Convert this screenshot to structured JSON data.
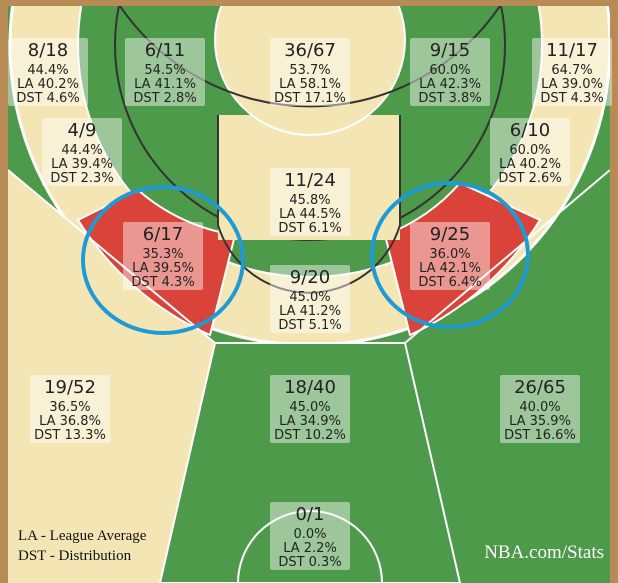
{
  "zones": [
    {
      "shots": "8/18",
      "pct": "44.4%",
      "la": "LA 40.2%",
      "dst": "DST 4.6%"
    },
    {
      "shots": "6/11",
      "pct": "54.5%",
      "la": "LA 41.1%",
      "dst": "DST 2.8%"
    },
    {
      "shots": "36/67",
      "pct": "53.7%",
      "la": "LA 58.1%",
      "dst": "DST 17.1%"
    },
    {
      "shots": "9/15",
      "pct": "60.0%",
      "la": "LA 42.3%",
      "dst": "DST 3.8%"
    },
    {
      "shots": "11/17",
      "pct": "64.7%",
      "la": "LA 39.0%",
      "dst": "DST 4.3%"
    },
    {
      "shots": "4/9",
      "pct": "44.4%",
      "la": "LA 39.4%",
      "dst": "DST 2.3%"
    },
    {
      "shots": "6/10",
      "pct": "60.0%",
      "la": "LA 40.2%",
      "dst": "DST 2.6%"
    },
    {
      "shots": "11/24",
      "pct": "45.8%",
      "la": "LA 44.5%",
      "dst": "DST 6.1%"
    },
    {
      "shots": "6/17",
      "pct": "35.3%",
      "la": "LA 39.5%",
      "dst": "DST 4.3%"
    },
    {
      "shots": "9/25",
      "pct": "36.0%",
      "la": "LA 42.1%",
      "dst": "DST 6.4%"
    },
    {
      "shots": "9/20",
      "pct": "45.0%",
      "la": "LA 41.2%",
      "dst": "DST 5.1%"
    },
    {
      "shots": "19/52",
      "pct": "36.5%",
      "la": "LA 36.8%",
      "dst": "DST 13.3%"
    },
    {
      "shots": "18/40",
      "pct": "45.0%",
      "la": "LA 34.9%",
      "dst": "DST 10.2%"
    },
    {
      "shots": "26/65",
      "pct": "40.0%",
      "la": "LA 35.9%",
      "dst": "DST 16.6%"
    },
    {
      "shots": "0/1",
      "pct": "0.0%",
      "la": "LA 2.2%",
      "dst": "DST 0.3%"
    }
  ],
  "legend": [
    "LA - League Average",
    "DST - Distribution"
  ],
  "watermark": "NBA.com/Stats"
}
